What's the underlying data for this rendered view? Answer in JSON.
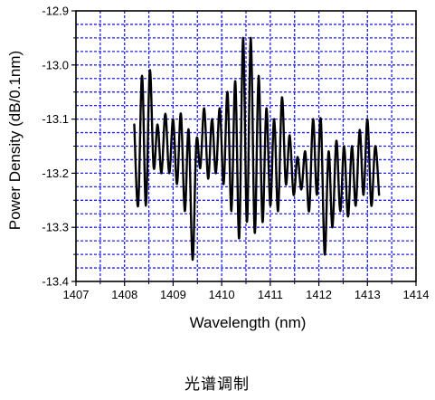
{
  "caption": "光谱调制",
  "chart_data": {
    "type": "line",
    "xlabel": "Wavelength (nm)",
    "ylabel": "Power Density (dB/0.1nm)",
    "xlim": [
      1407,
      1414
    ],
    "ylim": [
      -13.4,
      -12.9
    ],
    "x_ticks": [
      "1407",
      "1408",
      "1409",
      "1410",
      "1411",
      "1412",
      "1413",
      "1414"
    ],
    "y_ticks": [
      "-12.9",
      "-13.0",
      "-13.1",
      "-13.2",
      "-13.3",
      "-13.4"
    ],
    "grid": true,
    "legend": "none",
    "colors": {
      "line": "#000000",
      "grid": "#2222ee",
      "frame": "#000000"
    },
    "series": [
      {
        "x": [
          1408.2,
          1408.28,
          1408.36,
          1408.44,
          1408.52,
          1408.6,
          1408.68,
          1408.76,
          1408.84,
          1408.92,
          1409.0,
          1409.08,
          1409.16,
          1409.24,
          1409.32,
          1409.4,
          1409.48,
          1409.56,
          1409.64,
          1409.72,
          1409.8,
          1409.88,
          1409.96,
          1410.04,
          1410.12,
          1410.2,
          1410.28,
          1410.36,
          1410.44,
          1410.52,
          1410.6,
          1410.68,
          1410.76,
          1410.84,
          1410.92,
          1411.0,
          1411.08,
          1411.16,
          1411.24,
          1411.32,
          1411.4,
          1411.48,
          1411.56,
          1411.64,
          1411.72,
          1411.8,
          1411.88,
          1411.96,
          1412.04,
          1412.12,
          1412.2,
          1412.28,
          1412.36,
          1412.44,
          1412.52,
          1412.6,
          1412.68,
          1412.76,
          1412.84,
          1412.92,
          1413.0,
          1413.08,
          1413.16,
          1413.24
        ],
        "y": [
          -13.11,
          -13.26,
          -13.02,
          -13.26,
          -13.01,
          -13.19,
          -13.11,
          -13.2,
          -13.09,
          -13.2,
          -13.1,
          -13.22,
          -13.09,
          -13.27,
          -13.12,
          -13.36,
          -13.14,
          -13.19,
          -13.08,
          -13.21,
          -13.1,
          -13.2,
          -13.08,
          -13.22,
          -13.05,
          -13.27,
          -13.03,
          -13.32,
          -12.95,
          -13.29,
          -12.95,
          -13.31,
          -13.02,
          -13.29,
          -13.08,
          -13.26,
          -13.1,
          -13.27,
          -13.06,
          -13.22,
          -13.13,
          -13.24,
          -13.17,
          -13.23,
          -13.16,
          -13.27,
          -13.1,
          -13.24,
          -13.1,
          -13.35,
          -13.16,
          -13.3,
          -13.14,
          -13.27,
          -13.15,
          -13.28,
          -13.15,
          -13.26,
          -13.12,
          -13.24,
          -13.1,
          -13.26,
          -13.15,
          -13.24
        ]
      }
    ]
  }
}
